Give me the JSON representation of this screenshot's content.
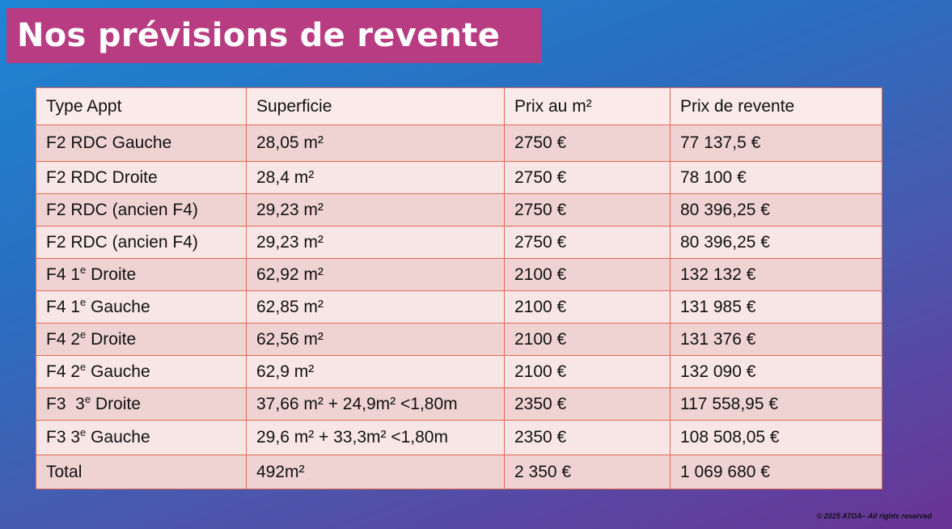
{
  "title": "Nos prévisions de revente",
  "table": {
    "headers": [
      "Type Appt",
      "Superficie",
      "Prix au m²",
      "Prix de revente"
    ],
    "rows": [
      {
        "type_main": "F2 RDC Gauche",
        "type_sup": "",
        "type_rest": "",
        "surface": "28,05 m²",
        "price_m2": "2750 €",
        "resale": "77 137,5 €"
      },
      {
        "type_main": "F2 RDC Droite",
        "type_sup": "",
        "type_rest": "",
        "surface": "28,4 m²",
        "price_m2": "2750 €",
        "resale": "78 100 €"
      },
      {
        "type_main": "F2 RDC (ancien F4)",
        "type_sup": "",
        "type_rest": "",
        "surface": "29,23 m²",
        "price_m2": "2750 €",
        "resale": "80 396,25 €"
      },
      {
        "type_main": "F2 RDC (ancien F4)",
        "type_sup": "",
        "type_rest": "",
        "surface": "29,23 m²",
        "price_m2": "2750 €",
        "resale": "80 396,25 €"
      },
      {
        "type_main": "F4 1",
        "type_sup": "e",
        "type_rest": " Droite",
        "surface": "62,92 m²",
        "price_m2": "2100 €",
        "resale": "132 132 €"
      },
      {
        "type_main": "F4 1",
        "type_sup": "e",
        "type_rest": " Gauche",
        "surface": "62,85 m²",
        "price_m2": "2100 €",
        "resale": "131 985 €"
      },
      {
        "type_main": "F4 2",
        "type_sup": "e",
        "type_rest": " Droite",
        "surface": "62,56 m²",
        "price_m2": "2100 €",
        "resale": "131 376 €"
      },
      {
        "type_main": "F4 2",
        "type_sup": "e",
        "type_rest": " Gauche",
        "surface": "62,9 m²",
        "price_m2": "2100 €",
        "resale": "132 090 €"
      },
      {
        "type_main": "F3  3",
        "type_sup": "e",
        "type_rest": " Droite",
        "surface": "37,66 m² + 24,9m² <1,80m",
        "price_m2": "2350 €",
        "resale": "117 558,95 €"
      },
      {
        "type_main": "F3 3",
        "type_sup": "e",
        "type_rest": " Gauche",
        "surface": "29,6 m² + 33,3m² <1,80m",
        "price_m2": "2350 €",
        "resale": "108 508,05 €"
      }
    ],
    "total": {
      "label": "Total",
      "surface": "492m²",
      "price_m2": "2 350 €",
      "resale": "1 069 680 €"
    }
  },
  "footer": {
    "copyright": "© 2025 ATOA– All rights reserved"
  }
}
